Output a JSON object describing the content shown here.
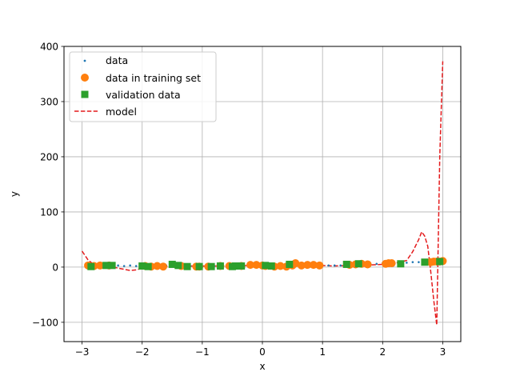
{
  "chart_data": {
    "type": "scatter",
    "xlabel": "x",
    "ylabel": "y",
    "xlim": [
      -3.3,
      3.3
    ],
    "ylim": [
      -135,
      400
    ],
    "xticks": [
      -3,
      -2,
      -1,
      0,
      1,
      2,
      3
    ],
    "xtick_labels": [
      "−3",
      "−2",
      "−1",
      "0",
      "1",
      "2",
      "3"
    ],
    "yticks": [
      -100,
      0,
      100,
      200,
      300,
      400
    ],
    "ytick_labels": [
      "−100",
      "0",
      "100",
      "200",
      "300",
      "400"
    ],
    "grid": true,
    "legend_position": "top-left",
    "legend": [
      "data",
      "data in training set",
      "validation data",
      "model"
    ],
    "series": [
      {
        "name": "data",
        "marker": "point",
        "color": "#1f77b4",
        "x": [
          -2.9,
          -2.8,
          -2.7,
          -2.6,
          -2.5,
          -2.4,
          -2.3,
          -2.2,
          -2.1,
          -2.0,
          -1.9,
          -1.8,
          -1.7,
          -1.6,
          -1.5,
          -1.4,
          -1.3,
          -1.2,
          -1.1,
          -1.0,
          -0.9,
          -0.8,
          -0.7,
          -0.6,
          -0.5,
          -0.4,
          -0.3,
          -0.2,
          -0.1,
          0.0,
          0.1,
          0.2,
          0.3,
          0.4,
          0.5,
          0.6,
          0.7,
          0.8,
          0.9,
          1.0,
          1.1,
          1.2,
          1.3,
          1.4,
          1.5,
          1.6,
          1.7,
          1.8,
          1.9,
          2.0,
          2.1,
          2.2,
          2.3,
          2.4,
          2.5,
          2.6,
          2.7,
          2.8,
          2.9,
          3.0
        ],
        "y": [
          3,
          2,
          4,
          2,
          3,
          3,
          2,
          3,
          2,
          2,
          3,
          2,
          1,
          3,
          4,
          2,
          1,
          2,
          1,
          1,
          2,
          2,
          3,
          2,
          3,
          2,
          3,
          4,
          4,
          4,
          2,
          1,
          2,
          2,
          4,
          4,
          4,
          3,
          3,
          3,
          3,
          3,
          3,
          4,
          5,
          6,
          6,
          5,
          6,
          7,
          7,
          7,
          7,
          8,
          9,
          9,
          9,
          10,
          10,
          11
        ]
      },
      {
        "name": "data in training set",
        "marker": "circle",
        "color": "#ff7f0e",
        "x": [
          -2.9,
          -2.8,
          -2.7,
          -2.55,
          -1.95,
          -1.85,
          -1.75,
          -1.65,
          -1.35,
          -1.1,
          -1.05,
          -0.9,
          -0.7,
          -0.55,
          -0.35,
          -0.2,
          -0.1,
          0.0,
          0.05,
          0.2,
          0.3,
          0.4,
          0.5,
          0.55,
          0.65,
          0.75,
          0.85,
          0.95,
          1.45,
          1.55,
          1.65,
          1.75,
          2.05,
          2.1,
          2.15,
          2.8,
          2.85,
          2.9,
          2.95,
          3.0
        ],
        "y": [
          3,
          2,
          3,
          3,
          2,
          1,
          2,
          1,
          2,
          1,
          1,
          1,
          2,
          2,
          2,
          4,
          4,
          3,
          2,
          1,
          2,
          1,
          3,
          7,
          3,
          4,
          4,
          3,
          4,
          5,
          6,
          5,
          6,
          7,
          7,
          9,
          10,
          10,
          10,
          11
        ]
      },
      {
        "name": "validation data",
        "marker": "square",
        "color": "#2ca02c",
        "x": [
          -2.85,
          -2.6,
          -2.5,
          -2.0,
          -1.9,
          -1.5,
          -1.4,
          -1.25,
          -1.05,
          -0.85,
          -0.7,
          -0.5,
          -0.45,
          -0.35,
          0.05,
          0.15,
          0.45,
          1.4,
          1.6,
          2.3,
          2.7,
          2.95
        ],
        "y": [
          1,
          3,
          3,
          2,
          1,
          5,
          3,
          1,
          1,
          1,
          2,
          1,
          2,
          2,
          3,
          2,
          5,
          5,
          6,
          6,
          9,
          10
        ]
      },
      {
        "name": "model",
        "marker": "dashed-line",
        "color": "#e41a1c",
        "x": [
          -3.0,
          -2.9,
          -2.8,
          -2.7,
          -2.6,
          -2.5,
          -2.4,
          -2.3,
          -2.2,
          -2.1,
          -2.0,
          -1.8,
          -1.6,
          -1.4,
          -1.2,
          -1.0,
          -0.8,
          -0.6,
          -0.4,
          -0.2,
          0.0,
          0.2,
          0.4,
          0.6,
          0.8,
          1.0,
          1.2,
          1.4,
          1.6,
          1.8,
          2.0,
          2.2,
          2.4,
          2.5,
          2.6,
          2.65,
          2.7,
          2.75,
          2.8,
          2.85,
          2.9,
          2.95,
          3.0
        ],
        "y": [
          29,
          13,
          4,
          1,
          0,
          1,
          -2,
          -4,
          -6,
          -5,
          -2,
          0,
          1,
          1,
          2,
          2,
          2,
          2,
          3,
          3,
          3,
          3,
          3,
          3,
          3,
          3,
          2,
          3,
          5,
          4,
          5,
          7,
          12,
          28,
          50,
          64,
          56,
          38,
          -8,
          -60,
          -105,
          200,
          373
        ]
      }
    ]
  }
}
